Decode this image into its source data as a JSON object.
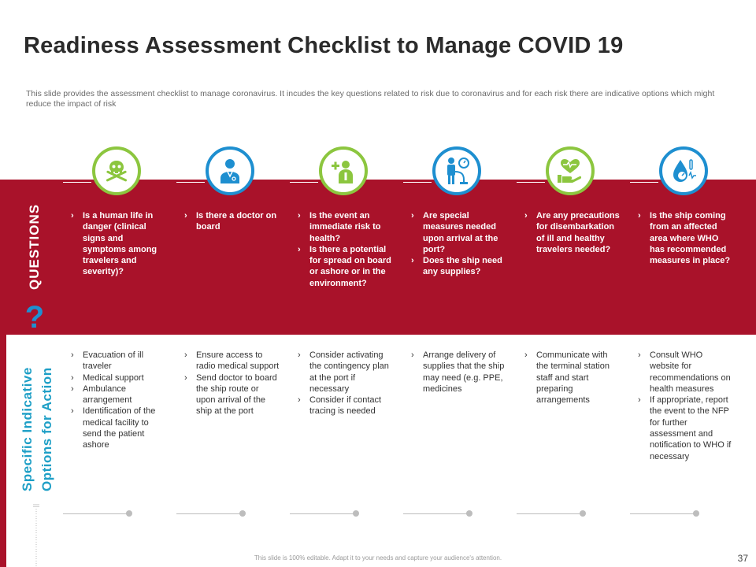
{
  "title": "Readiness Assessment Checklist to Manage COVID 19",
  "subtitle": "This slide provides the assessment checklist to manage coronavirus. It incudes the key questions related to risk due to coronavirus and for each risk there are indicative options which might reduce the impact of risk",
  "questions_label": "QUESTIONS",
  "options_label": [
    "Specific Indicative",
    "Options for Action"
  ],
  "colors": {
    "band": "#a9122a",
    "green": "#8cc63f",
    "blue": "#1e8fd0",
    "label_blue": "#1e9fc6"
  },
  "columns": [
    {
      "icon": "skull-crossbones-icon",
      "questions": [
        "Is a human life in danger (clinical signs and symptoms among travelers and severity)?"
      ],
      "options": [
        "Evacuation of ill traveler",
        "Medical support",
        "Ambulance arrangement",
        "Identification of the medical facility to send the patient ashore"
      ]
    },
    {
      "icon": "doctor-icon",
      "questions": [
        "Is there a doctor on board"
      ],
      "options": [
        "Ensure access to radio medical support",
        "Send doctor to board the ship route or upon arrival of the ship at the port"
      ]
    },
    {
      "icon": "medical-staff-icon",
      "questions": [
        "Is the event an immediate risk to health?",
        "Is there a potential for spread on board or ashore or in the environment?"
      ],
      "options": [
        "Consider activating the contingency plan at the port if necessary",
        "Consider if contact tracing is needed"
      ]
    },
    {
      "icon": "patient-blood-pressure-icon",
      "questions": [
        "Are special measures needed upon arrival at the port?",
        "Does the ship need any supplies?"
      ],
      "options": [
        "Arrange delivery of supplies that the ship may need (e.g. PPE, medicines"
      ]
    },
    {
      "icon": "heart-hand-care-icon",
      "questions": [
        "Are any precautions for disembarkation of ill and healthy travelers needed?"
      ],
      "options": [
        "Communicate with the terminal station staff and start preparing arrangements"
      ]
    },
    {
      "icon": "blood-drop-gauge-icon",
      "questions": [
        "Is the ship coming from an affected area where WHO has recommended measures in place?"
      ],
      "options": [
        "Consult WHO website for recommendations on health measures",
        "If appropriate, report the event to the NFP for further assessment and notification to WHO if necessary"
      ]
    }
  ],
  "footer": "This slide is 100% editable. Adapt it to your needs and capture your audience's attention.",
  "page_number": "37"
}
